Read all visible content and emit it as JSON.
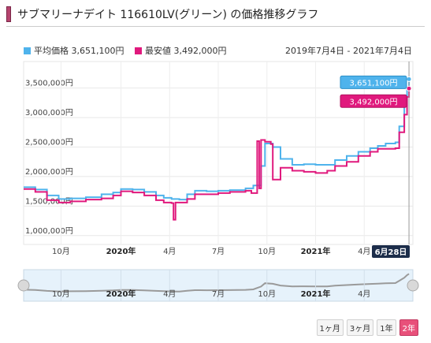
{
  "header": {
    "title": "サブマリーナデイト 116610LV(グリーン) の価格推移グラフ"
  },
  "legend": [
    {
      "label": "平均価格 3,651,100円",
      "color": "#4fb3ec"
    },
    {
      "label": "最安値 3,492,000円",
      "color": "#e0197d"
    }
  ],
  "range_text": "2019年7月4日 - 2021年7月4日",
  "tooltip": {
    "date": "6月28日",
    "avg": "3,651,100円",
    "min": "3,492,000円"
  },
  "buttons": [
    {
      "label": "1ヶ月",
      "active": false
    },
    {
      "label": "3ヶ月",
      "active": false
    },
    {
      "label": "1年",
      "active": false
    },
    {
      "label": "2年",
      "active": true
    }
  ],
  "chart_data": {
    "type": "line",
    "yticks": [
      "3,500,000円",
      "3,000,000円",
      "2,500,000円",
      "2,000,000円",
      "1,500,000円",
      "1,000,000円"
    ],
    "ytick_values": [
      3500000,
      3000000,
      2500000,
      2000000,
      1500000,
      1000000
    ],
    "xticks": [
      {
        "label": "10月",
        "t": 0.096,
        "bold": false
      },
      {
        "label": "2020年",
        "t": 0.25,
        "bold": true
      },
      {
        "label": "4月",
        "t": 0.375,
        "bold": false
      },
      {
        "label": "7月",
        "t": 0.5,
        "bold": false
      },
      {
        "label": "10月",
        "t": 0.625,
        "bold": false
      },
      {
        "label": "2021年",
        "t": 0.75,
        "bold": true
      },
      {
        "label": "4月",
        "t": 0.875,
        "bold": false
      }
    ],
    "ylim": [
      850000,
      3950000
    ],
    "series": [
      {
        "name": "平均価格",
        "color": "#4fb3ec",
        "points": [
          [
            0,
            1820000
          ],
          [
            0.03,
            1780000
          ],
          [
            0.06,
            1680000
          ],
          [
            0.09,
            1620000
          ],
          [
            0.12,
            1630000
          ],
          [
            0.16,
            1650000
          ],
          [
            0.2,
            1700000
          ],
          [
            0.23,
            1730000
          ],
          [
            0.25,
            1790000
          ],
          [
            0.28,
            1780000
          ],
          [
            0.31,
            1740000
          ],
          [
            0.34,
            1680000
          ],
          [
            0.36,
            1640000
          ],
          [
            0.38,
            1620000
          ],
          [
            0.4,
            1610000
          ],
          [
            0.42,
            1700000
          ],
          [
            0.44,
            1760000
          ],
          [
            0.47,
            1750000
          ],
          [
            0.5,
            1760000
          ],
          [
            0.53,
            1770000
          ],
          [
            0.57,
            1800000
          ],
          [
            0.59,
            1850000
          ],
          [
            0.61,
            2180000
          ],
          [
            0.62,
            2560000
          ],
          [
            0.64,
            2500000
          ],
          [
            0.66,
            2300000
          ],
          [
            0.69,
            2200000
          ],
          [
            0.72,
            2210000
          ],
          [
            0.75,
            2200000
          ],
          [
            0.78,
            2200000
          ],
          [
            0.8,
            2280000
          ],
          [
            0.83,
            2350000
          ],
          [
            0.86,
            2420000
          ],
          [
            0.89,
            2480000
          ],
          [
            0.91,
            2520000
          ],
          [
            0.93,
            2560000
          ],
          [
            0.955,
            2580000
          ],
          [
            0.965,
            2850000
          ],
          [
            0.978,
            3200000
          ],
          [
            0.985,
            3500000
          ],
          [
            0.99,
            3651100
          ]
        ]
      },
      {
        "name": "最安値",
        "color": "#e0197d",
        "points": [
          [
            0,
            1790000
          ],
          [
            0.03,
            1740000
          ],
          [
            0.06,
            1600000
          ],
          [
            0.09,
            1560000
          ],
          [
            0.12,
            1580000
          ],
          [
            0.16,
            1610000
          ],
          [
            0.2,
            1630000
          ],
          [
            0.23,
            1680000
          ],
          [
            0.25,
            1750000
          ],
          [
            0.28,
            1730000
          ],
          [
            0.31,
            1680000
          ],
          [
            0.34,
            1600000
          ],
          [
            0.36,
            1560000
          ],
          [
            0.38,
            1550000
          ],
          [
            0.385,
            1270000
          ],
          [
            0.39,
            1560000
          ],
          [
            0.42,
            1620000
          ],
          [
            0.44,
            1700000
          ],
          [
            0.47,
            1700000
          ],
          [
            0.5,
            1720000
          ],
          [
            0.53,
            1740000
          ],
          [
            0.57,
            1760000
          ],
          [
            0.585,
            1720000
          ],
          [
            0.6,
            2600000
          ],
          [
            0.605,
            1800000
          ],
          [
            0.61,
            2620000
          ],
          [
            0.62,
            2590000
          ],
          [
            0.635,
            2550000
          ],
          [
            0.64,
            1950000
          ],
          [
            0.66,
            2150000
          ],
          [
            0.69,
            2100000
          ],
          [
            0.72,
            2080000
          ],
          [
            0.75,
            2060000
          ],
          [
            0.78,
            2100000
          ],
          [
            0.8,
            2180000
          ],
          [
            0.83,
            2250000
          ],
          [
            0.86,
            2350000
          ],
          [
            0.89,
            2420000
          ],
          [
            0.91,
            2470000
          ],
          [
            0.955,
            2480000
          ],
          [
            0.965,
            2750000
          ],
          [
            0.978,
            3050000
          ],
          [
            0.985,
            3350000
          ],
          [
            0.99,
            3492000
          ]
        ]
      }
    ]
  }
}
